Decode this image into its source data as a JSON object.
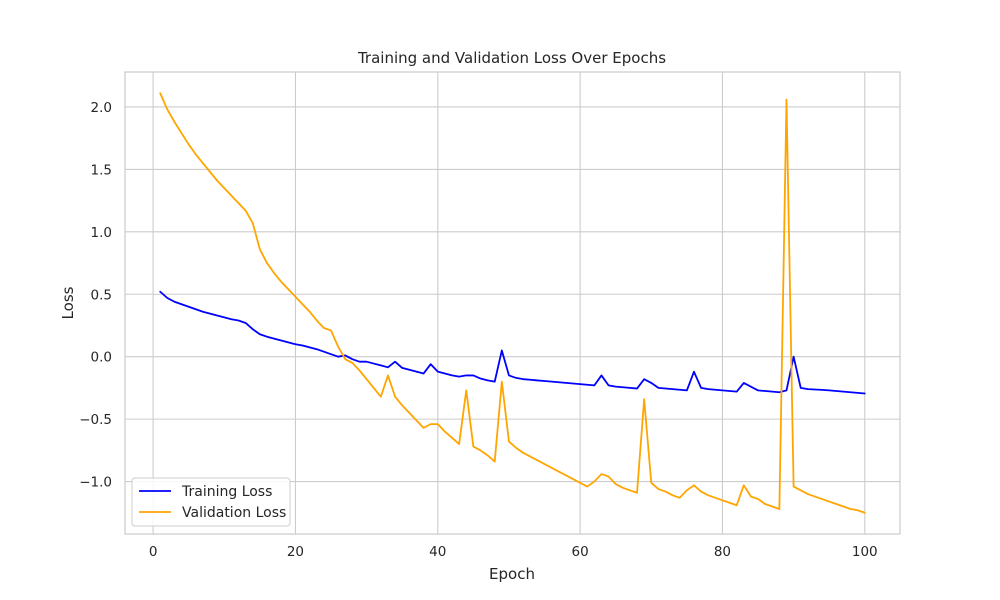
{
  "chart_data": {
    "type": "line",
    "title": "Training and Validation Loss Over Epochs",
    "xlabel": "Epoch",
    "ylabel": "Loss",
    "xlim": [
      -3.95,
      104.95
    ],
    "ylim": [
      -1.42,
      2.28
    ],
    "x_ticks": [
      0,
      20,
      40,
      60,
      80,
      100
    ],
    "x_tick_labels": [
      "0",
      "20",
      "40",
      "60",
      "80",
      "100"
    ],
    "y_ticks": [
      -1.0,
      -0.5,
      0.0,
      0.5,
      1.0,
      1.5,
      2.0
    ],
    "y_tick_labels": [
      "−1.0",
      "−0.5",
      "0.0",
      "0.5",
      "1.0",
      "1.5",
      "2.0"
    ],
    "grid": true,
    "legend_position": "lower-left",
    "series": [
      {
        "name": "Training Loss",
        "color": "#0000ff",
        "x": [
          1,
          2,
          3,
          4,
          5,
          6,
          7,
          8,
          9,
          10,
          11,
          12,
          13,
          14,
          15,
          16,
          17,
          18,
          19,
          20,
          21,
          22,
          23,
          24,
          25,
          26,
          27,
          28,
          29,
          30,
          31,
          32,
          33,
          34,
          35,
          36,
          37,
          38,
          39,
          40,
          41,
          42,
          43,
          44,
          45,
          46,
          47,
          48,
          49,
          50,
          51,
          52,
          53,
          54,
          55,
          56,
          57,
          58,
          59,
          60,
          61,
          62,
          63,
          64,
          65,
          66,
          67,
          68,
          69,
          70,
          71,
          72,
          73,
          74,
          75,
          76,
          77,
          78,
          79,
          80,
          81,
          82,
          83,
          84,
          85,
          86,
          87,
          88,
          89,
          90,
          91,
          92,
          93,
          94,
          95,
          96,
          97,
          98,
          99,
          100
        ],
        "y": [
          0.52,
          0.47,
          0.44,
          0.42,
          0.4,
          0.38,
          0.36,
          0.345,
          0.33,
          0.315,
          0.3,
          0.29,
          0.27,
          0.22,
          0.18,
          0.16,
          0.145,
          0.13,
          0.115,
          0.1,
          0.09,
          0.075,
          0.06,
          0.04,
          0.02,
          0.0,
          0.01,
          -0.02,
          -0.04,
          -0.04,
          -0.055,
          -0.07,
          -0.085,
          -0.04,
          -0.09,
          -0.105,
          -0.12,
          -0.135,
          -0.06,
          -0.12,
          -0.135,
          -0.15,
          -0.16,
          -0.15,
          -0.15,
          -0.175,
          -0.19,
          -0.2,
          0.05,
          -0.15,
          -0.17,
          -0.18,
          -0.185,
          -0.19,
          -0.195,
          -0.2,
          -0.205,
          -0.21,
          -0.215,
          -0.22,
          -0.225,
          -0.23,
          -0.15,
          -0.23,
          -0.24,
          -0.245,
          -0.25,
          -0.255,
          -0.18,
          -0.21,
          -0.25,
          -0.255,
          -0.26,
          -0.265,
          -0.27,
          -0.12,
          -0.25,
          -0.26,
          -0.265,
          -0.27,
          -0.275,
          -0.28,
          -0.21,
          -0.24,
          -0.27,
          -0.275,
          -0.28,
          -0.285,
          -0.27,
          0.0,
          -0.25,
          -0.26,
          -0.263,
          -0.266,
          -0.27,
          -0.275,
          -0.28,
          -0.285,
          -0.29,
          -0.295
        ]
      },
      {
        "name": "Validation Loss",
        "color": "#ffa500",
        "x": [
          1,
          2,
          3,
          4,
          5,
          6,
          7,
          8,
          9,
          10,
          11,
          12,
          13,
          14,
          15,
          16,
          17,
          18,
          19,
          20,
          21,
          22,
          23,
          24,
          25,
          26,
          27,
          28,
          29,
          30,
          31,
          32,
          33,
          34,
          35,
          36,
          37,
          38,
          39,
          40,
          41,
          42,
          43,
          44,
          45,
          46,
          47,
          48,
          49,
          50,
          51,
          52,
          53,
          54,
          55,
          56,
          57,
          58,
          59,
          60,
          61,
          62,
          63,
          64,
          65,
          66,
          67,
          68,
          69,
          70,
          71,
          72,
          73,
          74,
          75,
          76,
          77,
          78,
          79,
          80,
          81,
          82,
          83,
          84,
          85,
          86,
          87,
          88,
          89,
          90,
          91,
          92,
          93,
          94,
          95,
          96,
          97,
          98,
          99,
          100
        ],
        "y": [
          2.11,
          1.98,
          1.88,
          1.79,
          1.7,
          1.62,
          1.55,
          1.48,
          1.41,
          1.35,
          1.29,
          1.23,
          1.17,
          1.07,
          0.86,
          0.75,
          0.67,
          0.6,
          0.54,
          0.48,
          0.42,
          0.36,
          0.29,
          0.23,
          0.21,
          0.08,
          -0.02,
          -0.05,
          -0.11,
          -0.18,
          -0.25,
          -0.32,
          -0.15,
          -0.32,
          -0.39,
          -0.45,
          -0.51,
          -0.57,
          -0.54,
          -0.54,
          -0.6,
          -0.65,
          -0.7,
          -0.27,
          -0.72,
          -0.75,
          -0.79,
          -0.84,
          -0.2,
          -0.68,
          -0.73,
          -0.77,
          -0.8,
          -0.83,
          -0.86,
          -0.89,
          -0.92,
          -0.95,
          -0.98,
          -1.01,
          -1.04,
          -1.0,
          -0.94,
          -0.96,
          -1.02,
          -1.05,
          -1.07,
          -1.09,
          -0.34,
          -1.01,
          -1.06,
          -1.08,
          -1.11,
          -1.13,
          -1.07,
          -1.03,
          -1.08,
          -1.11,
          -1.13,
          -1.15,
          -1.17,
          -1.19,
          -1.03,
          -1.12,
          -1.14,
          -1.18,
          -1.2,
          -1.22,
          2.06,
          -1.04,
          -1.07,
          -1.1,
          -1.12,
          -1.14,
          -1.16,
          -1.18,
          -1.2,
          -1.22,
          -1.23,
          -1.25
        ]
      }
    ]
  }
}
